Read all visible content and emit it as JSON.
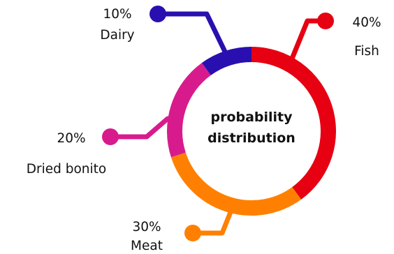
{
  "chart_data": {
    "type": "pie",
    "variant": "donut",
    "title": [
      "probability",
      "distribution"
    ],
    "categories": [
      "Fish",
      "Meat",
      "Dried bonito",
      "Dairy"
    ],
    "values": [
      40,
      30,
      20,
      10
    ],
    "value_labels": [
      "40%",
      "30%",
      "20%",
      "10%"
    ],
    "colors": [
      "#E60012",
      "#FF8000",
      "#D81B8C",
      "#2A0FB0"
    ],
    "start_angle_deg": 0,
    "direction": "clockwise"
  }
}
